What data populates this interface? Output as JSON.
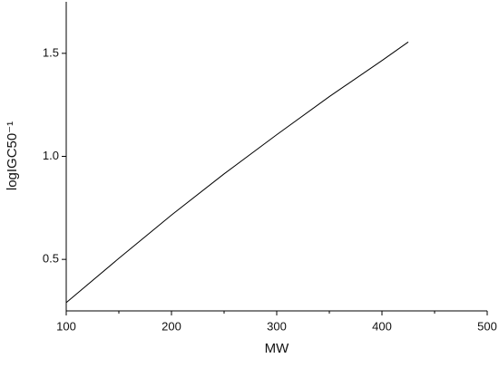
{
  "chart_data": {
    "type": "line",
    "xlabel": "MW",
    "ylabel": "logIGC50⁻¹",
    "x": [
      100,
      150,
      200,
      250,
      300,
      350,
      400,
      425
    ],
    "series": [
      {
        "color": "#000000",
        "values": [
          0.29,
          0.505,
          0.715,
          0.915,
          1.105,
          1.29,
          1.465,
          1.555
        ]
      }
    ],
    "xlim": [
      100,
      500
    ],
    "xticks": [
      100,
      200,
      300,
      400,
      500
    ],
    "xminorticks": [
      150,
      250,
      350,
      450
    ],
    "ylim": [
      0.25,
      1.75
    ],
    "yticks": [
      0.5,
      {
        "value": 1.0,
        "label": "1.0"
      },
      1.5
    ]
  }
}
